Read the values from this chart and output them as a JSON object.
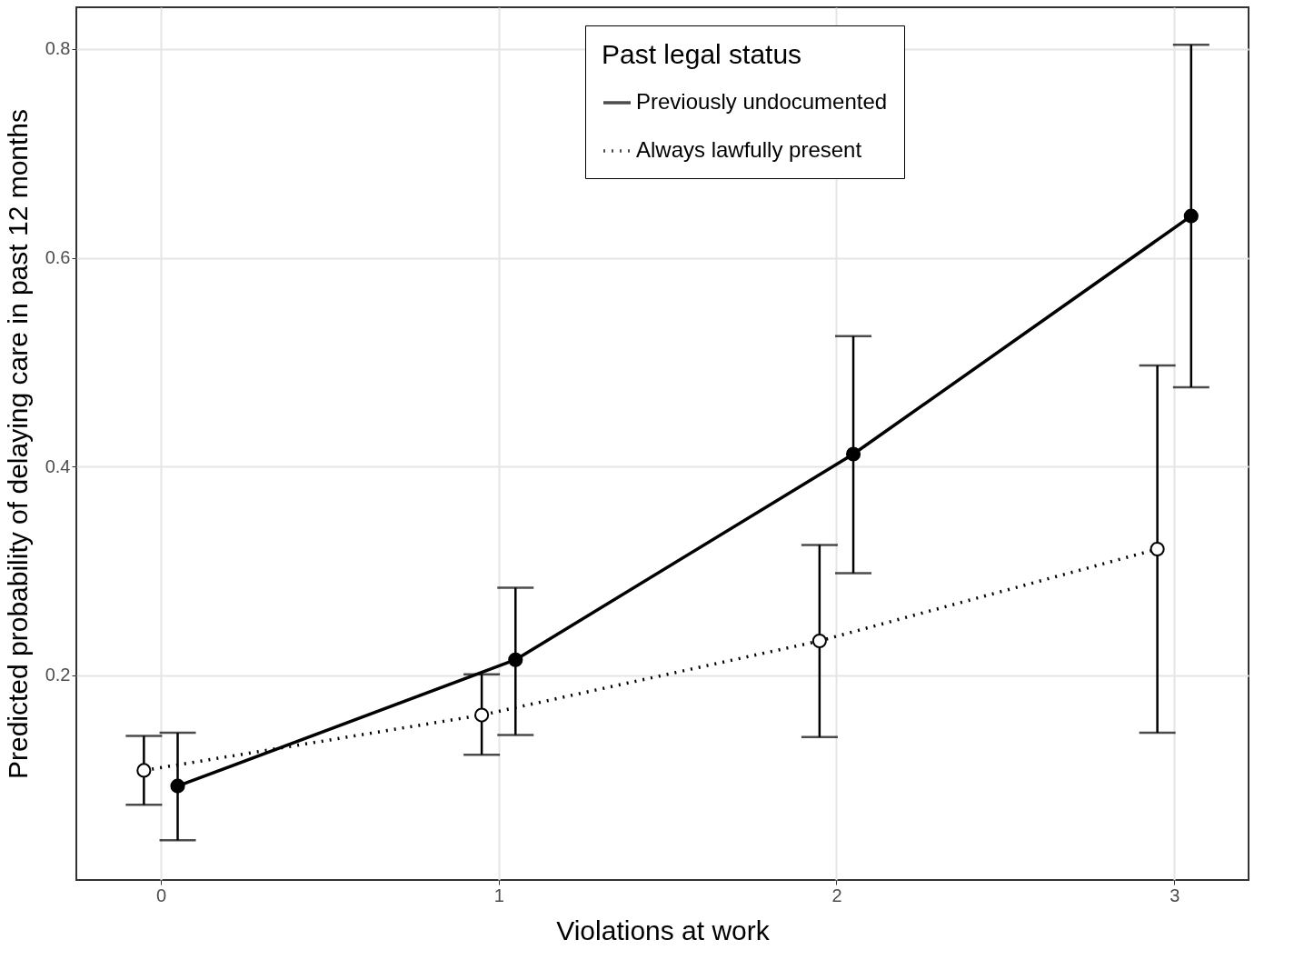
{
  "chart_data": {
    "type": "line",
    "xlabel": "Violations at work",
    "ylabel": "Predicted probability of delaying care in past 12 months",
    "legend_title": "Past legal status",
    "xlim": [
      -0.25,
      3.22
    ],
    "xticks": [
      0,
      1,
      2,
      3
    ],
    "ylim": [
      0.004,
      0.84
    ],
    "yticks": [
      0.2,
      0.4,
      0.6,
      0.8
    ],
    "grid": true,
    "legend": "top right",
    "marker": "circle",
    "series": [
      {
        "name": "Previously undocumented",
        "color": "#000000",
        "line_style": "solid",
        "x": [
          0.05,
          1.05,
          2.05,
          3.05
        ],
        "values": [
          0.094,
          0.215,
          0.412,
          0.64
        ],
        "errors": [
          [
            0.042,
            0.145
          ],
          [
            0.143,
            0.284
          ],
          [
            0.298,
            0.525
          ],
          [
            0.476,
            0.804
          ]
        ]
      },
      {
        "name": "Always lawfully present",
        "color": "#000000",
        "line_style": "dotted",
        "x": [
          -0.05,
          0.95,
          1.95,
          2.95
        ],
        "values": [
          0.109,
          0.162,
          0.233,
          0.321
        ],
        "errors": [
          [
            0.076,
            0.142
          ],
          [
            0.124,
            0.201
          ],
          [
            0.141,
            0.325
          ],
          [
            0.145,
            0.497
          ]
        ]
      }
    ]
  }
}
